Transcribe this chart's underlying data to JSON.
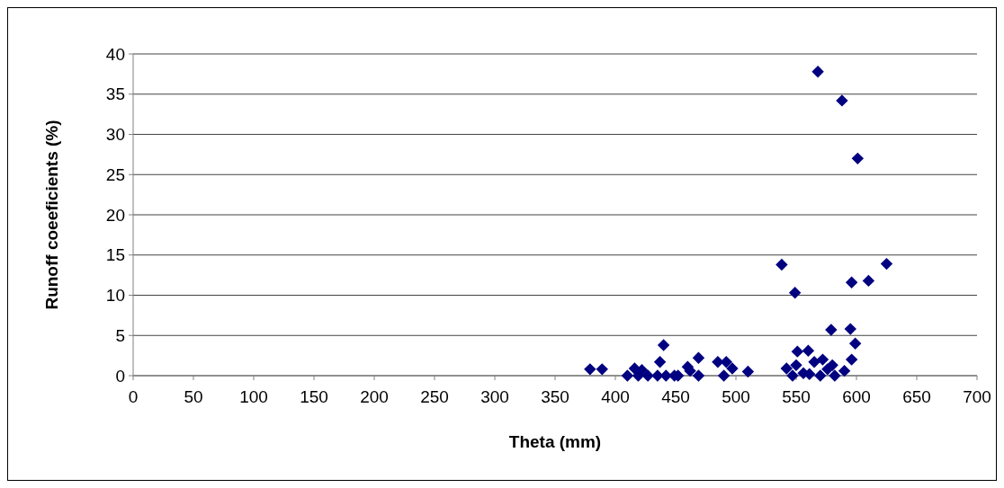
{
  "chart_data": {
    "type": "scatter",
    "xlabel": "Theta (mm)",
    "ylabel": "Runoff coeeficients (%)",
    "xlim": [
      0,
      700
    ],
    "xticks": [
      0,
      50,
      100,
      150,
      200,
      250,
      300,
      350,
      400,
      450,
      500,
      550,
      600,
      650,
      700
    ],
    "ylim": [
      0,
      40
    ],
    "yticks": [
      0,
      5,
      10,
      15,
      20,
      25,
      30,
      35,
      40
    ],
    "grid": "y",
    "marker": "diamond",
    "series": [
      {
        "color": "#000080",
        "x": [
          379,
          389,
          410,
          416,
          419,
          422,
          427,
          435,
          437,
          440,
          442,
          449,
          452,
          460,
          462,
          469,
          469,
          485,
          490,
          492,
          497,
          510,
          538,
          542,
          547,
          549,
          550,
          551,
          556,
          560,
          561,
          565,
          568,
          570,
          572,
          576,
          579,
          580,
          582,
          588,
          590,
          595,
          596,
          596,
          599,
          601,
          610,
          625
        ],
        "values": [
          0.8,
          0.8,
          0,
          0.9,
          0,
          0.7,
          0,
          0,
          1.7,
          3.8,
          0,
          0,
          0,
          1.1,
          0.6,
          2.2,
          0,
          1.7,
          0,
          1.7,
          0.9,
          0.5,
          13.8,
          0.9,
          0,
          10.3,
          1.3,
          3,
          0.3,
          3.1,
          0.2,
          1.7,
          37.8,
          0,
          2,
          0.8,
          5.7,
          1.3,
          0,
          34.2,
          0.6,
          5.8,
          11.6,
          2,
          4,
          27,
          11.8,
          13.9
        ]
      }
    ]
  }
}
